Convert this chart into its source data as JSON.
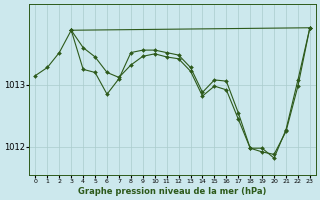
{
  "background_color": "#cce8ed",
  "grid_color": "#aacccc",
  "line_color": "#2d5a1b",
  "marker_color": "#2d5a1b",
  "xlabel": "Graphe pression niveau de la mer (hPa)",
  "xlim": [
    -0.5,
    23.5
  ],
  "ylim": [
    1011.55,
    1014.3
  ],
  "yticks": [
    1012,
    1013
  ],
  "xticks": [
    0,
    1,
    2,
    3,
    4,
    5,
    6,
    7,
    8,
    9,
    10,
    11,
    12,
    13,
    14,
    15,
    16,
    17,
    18,
    19,
    20,
    21,
    22,
    23
  ],
  "series": [
    {
      "x": [
        0,
        1,
        2,
        3
      ],
      "y": [
        1013.15,
        1013.28,
        1013.52,
        1013.88
      ]
    },
    {
      "x": [
        3,
        23
      ],
      "y": [
        1013.88,
        1013.92
      ]
    },
    {
      "x": [
        3,
        4,
        5,
        6,
        7,
        8,
        9,
        10,
        11,
        12,
        13,
        14,
        15,
        16,
        17,
        18,
        19,
        20,
        21,
        22,
        23
      ],
      "y": [
        1013.88,
        1013.25,
        1013.2,
        1012.85,
        1013.1,
        1013.52,
        1013.56,
        1013.56,
        1013.52,
        1013.48,
        1013.28,
        1012.88,
        1013.08,
        1013.06,
        1012.55,
        1011.98,
        1011.98,
        1011.82,
        1012.28,
        1013.08,
        1013.92
      ]
    },
    {
      "x": [
        3,
        4,
        5,
        6,
        7,
        8,
        9,
        10,
        11,
        12,
        13,
        14,
        15,
        16,
        17,
        18,
        19,
        20,
        21,
        22,
        23
      ],
      "y": [
        1013.88,
        1013.6,
        1013.45,
        1013.2,
        1013.12,
        1013.32,
        1013.46,
        1013.5,
        1013.45,
        1013.42,
        1013.22,
        1012.82,
        1012.98,
        1012.92,
        1012.45,
        1011.98,
        1011.92,
        1011.88,
        1012.25,
        1012.98,
        1013.92
      ]
    }
  ]
}
